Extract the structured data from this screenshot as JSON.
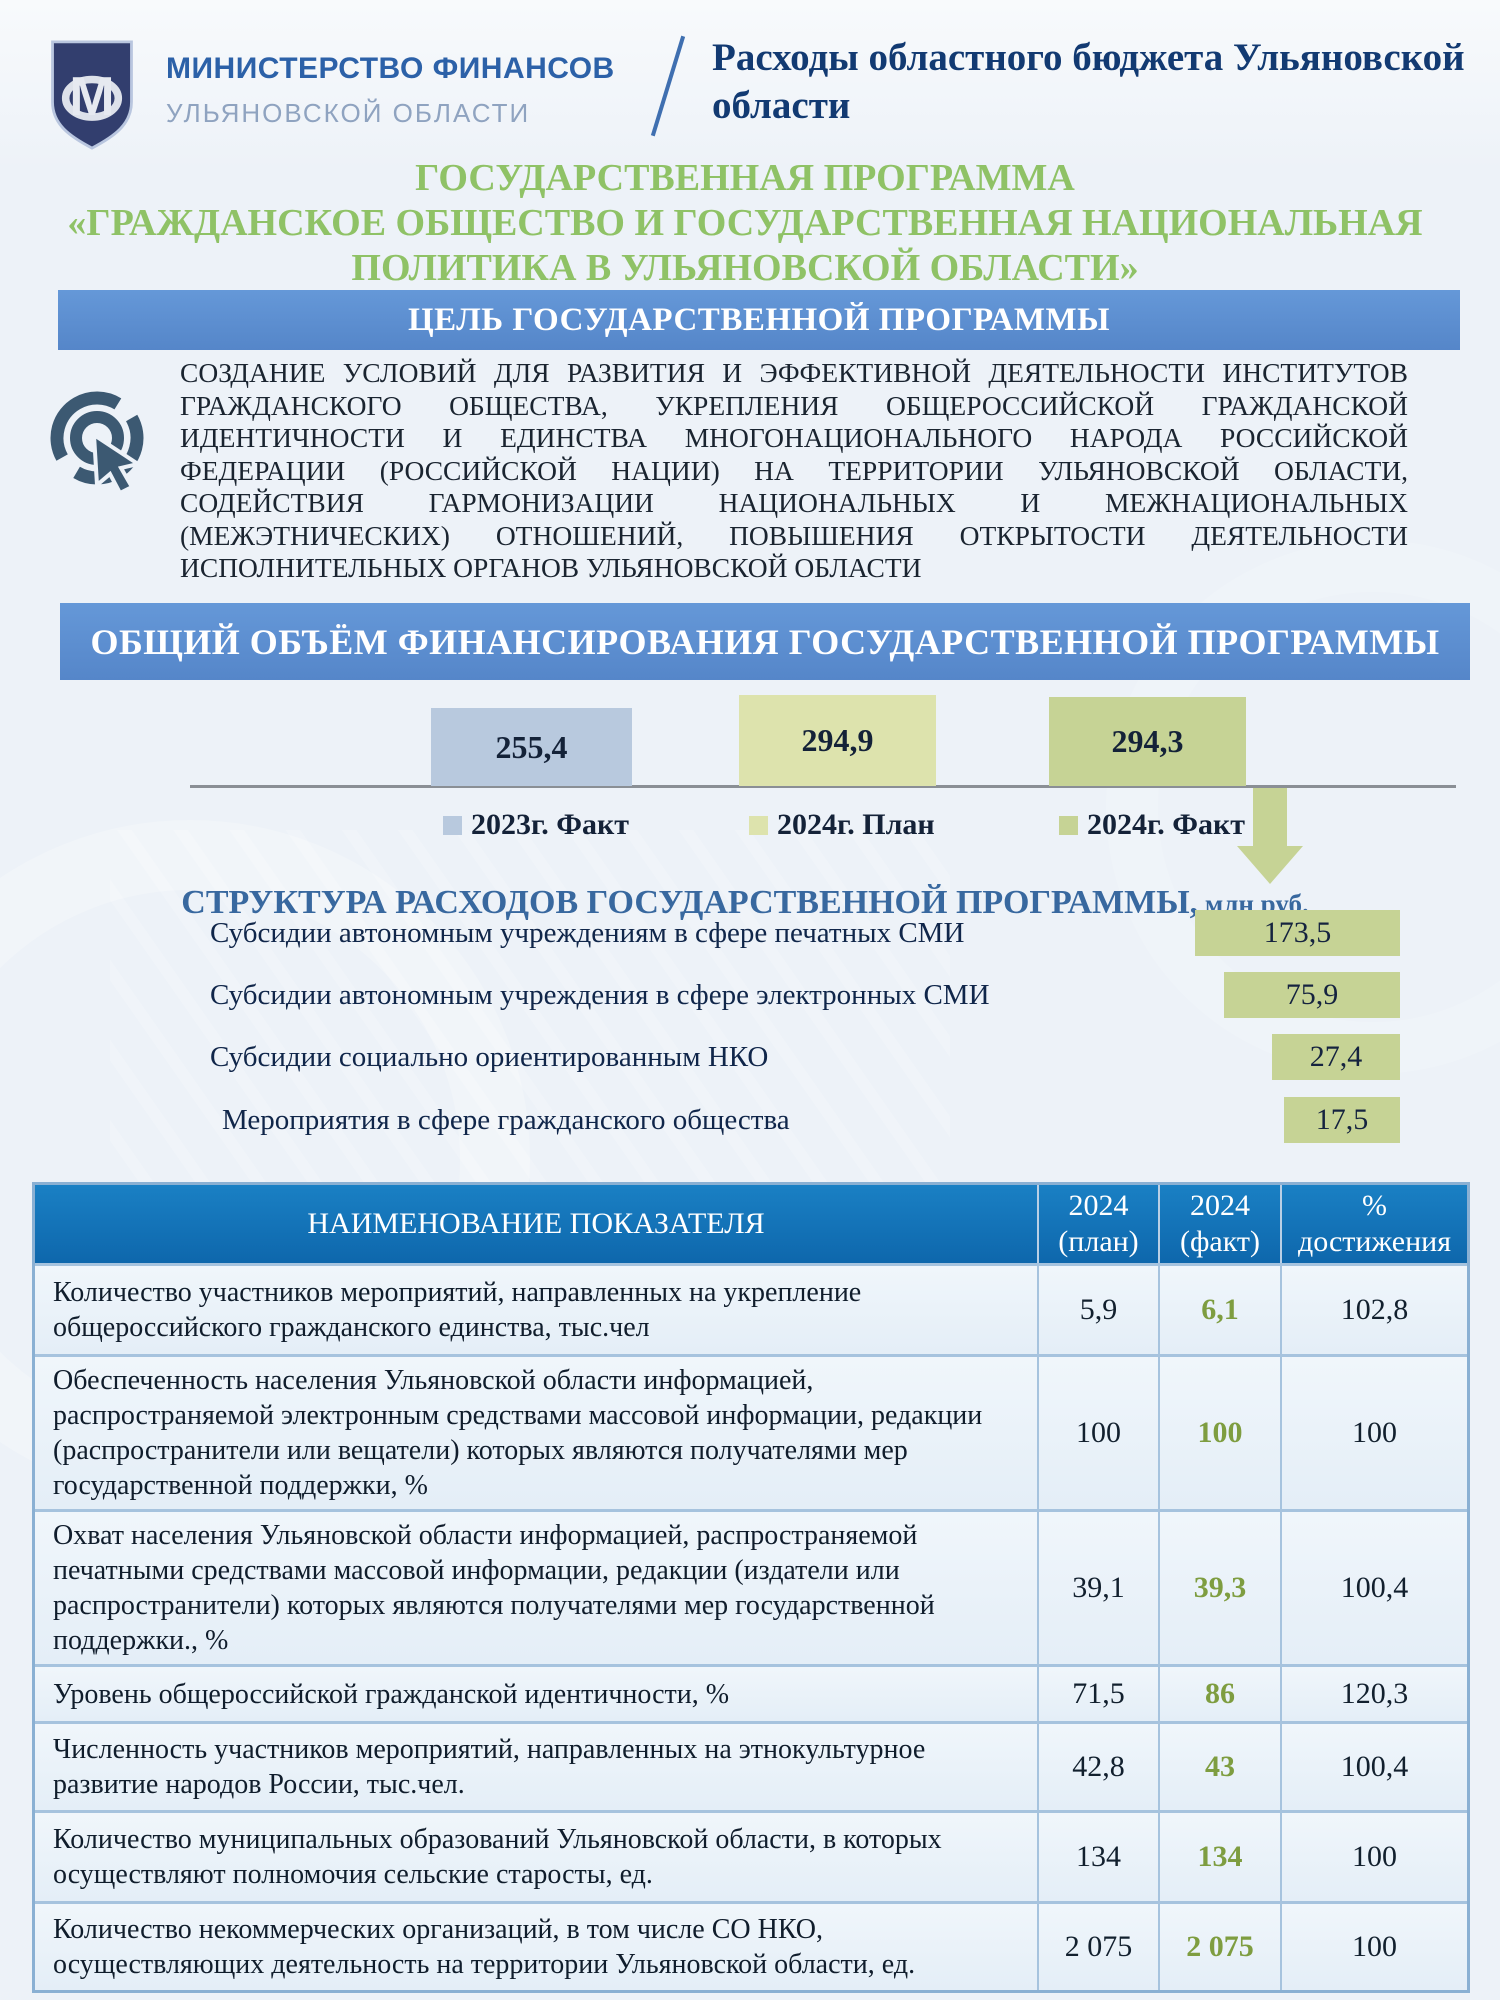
{
  "colors": {
    "banner_blue": "#5c90d1",
    "table_header_blue": "#1375bc",
    "bar_2023_fact": "#b8c9de",
    "bar_2024_plan": "#dde3ad",
    "bar_2024_fact": "#c6d395",
    "fact_green_text": "#7e9d40",
    "title_navy": "#123a72",
    "structure_title_blue": "#38689f",
    "program_title_green": "#8fc266"
  },
  "header": {
    "ministry_line1": "МИНИСТЕРСТВО ФИНАНСОВ",
    "ministry_line2": "УЛЬЯНОВСКОЙ ОБЛАСТИ",
    "logo_monogram": "М",
    "page_title": "Расходы областного бюджета Ульяновской области"
  },
  "program_title": {
    "line1": "ГОСУДАРСТВЕННАЯ ПРОГРАММА",
    "line2": "«ГРАЖДАНСКОЕ ОБЩЕСТВО И ГОСУДАРСТВЕННАЯ НАЦИОНАЛЬНАЯ",
    "line3": "ПОЛИТИКА В УЛЬЯНОВСКОЙ ОБЛАСТИ»"
  },
  "goal": {
    "banner": "ЦЕЛЬ ГОСУДАРСТВЕННОЙ ПРОГРАММЫ",
    "text": "СОЗДАНИЕ УСЛОВИЙ ДЛЯ РАЗВИТИЯ И ЭФФЕКТИВНОЙ ДЕЯТЕЛЬНОСТИ ИНСТИТУТОВ ГРАЖДАНСКОГО ОБЩЕСТВА, УКРЕПЛЕНИЯ ОБЩЕРОССИЙСКОЙ ГРАЖДАНСКОЙ ИДЕНТИЧНОСТИ И ЕДИНСТВА МНОГОНАЦИОНАЛЬНОГО НАРОДА РОССИЙСКОЙ ФЕДЕРАЦИИ (РОССИЙСКОЙ НАЦИИ) НА ТЕРРИТОРИИ УЛЬЯНОВСКОЙ ОБЛАСТИ, СОДЕЙСТВИЯ ГАРМОНИЗАЦИИ НАЦИОНАЛЬНЫХ И МЕЖНАЦИОНАЛЬНЫХ (МЕЖЭТНИЧЕСКИХ) ОТНОШЕНИЙ, ПОВЫШЕНИЯ ОТКРЫТОСТИ ДЕЯТЕЛЬНОСТИ ИСПОЛНИТЕЛЬНЫХ ОРГАНОВ УЛЬЯНОВСКОЙ ОБЛАСТИ"
  },
  "funding_banner": "ОБЩИЙ ОБЪЁМ ФИНАНСИРОВАНИЯ ГОСУДАРСТВЕННОЙ ПРОГРАММЫ",
  "structure_title": {
    "main": "СТРУКТУРА РАСХОДОВ ГОСУДАРСТВЕННОЙ ПРОГРАММЫ,",
    "units": " млн руб."
  },
  "chart_data": [
    {
      "type": "bar",
      "title": "ОБЩИЙ ОБЪЁМ ФИНАНСИРОВАНИЯ ГОСУДАРСТВЕННОЙ ПРОГРАММЫ",
      "unit": "млн руб.",
      "categories": [
        "2023г. Факт",
        "2024г. План",
        "2024г. Факт"
      ],
      "values": [
        255.4,
        294.9,
        294.3
      ],
      "value_labels": [
        "255,4",
        "294,9",
        "294,3"
      ],
      "colors": [
        "#b8c9de",
        "#dde3ad",
        "#c6d395"
      ],
      "legend_position": "bottom",
      "gridlines": false
    },
    {
      "type": "bar",
      "orientation": "horizontal",
      "title": "СТРУКТУРА РАСХОДОВ ГОСУДАРСТВЕННОЙ ПРОГРАММЫ, млн руб.",
      "unit": "млн руб.",
      "categories": [
        "Субсидии автономным учреждениям  в сфере печатных СМИ",
        "Субсидии автономным учреждения в сфере электронных СМИ",
        "Субсидии социально ориентированным НКО",
        "Мероприятия в сфере гражданского общества"
      ],
      "values": [
        173.5,
        75.9,
        27.4,
        17.5
      ],
      "value_labels": [
        "173,5",
        "75,9",
        "27,4",
        "17,5"
      ],
      "bar_color": "#c6d395"
    }
  ],
  "table": {
    "headers": [
      "НАИМЕНОВАНИЕ ПОКАЗАТЕЛЯ",
      "2024\n(план)",
      "2024\n(факт)",
      "%\nдостижения"
    ],
    "rows": [
      {
        "name": "Количество участников мероприятий, направленных на укрепление общероссийского гражданского единства, тыс.чел",
        "plan": "5,9",
        "fact": "6,1",
        "pct": "102,8"
      },
      {
        "name": "Обеспеченность населения Ульяновской области информацией, распространяемой электронным средствами массовой информации, редакции (распространители или вещатели) которых являются получателями мер государственной поддержки, %",
        "plan": "100",
        "fact": "100",
        "pct": "100"
      },
      {
        "name": "Охват населения Ульяновской области информацией, распространяемой печатными средствами массовой информации, редакции (издатели или распространители) которых являются получателями мер государственной поддержки., %",
        "plan": "39,1",
        "fact": "39,3",
        "pct": "100,4"
      },
      {
        "name": "Уровень общероссийской гражданской идентичности, %",
        "plan": "71,5",
        "fact": "86",
        "pct": "120,3"
      },
      {
        "name": "Численность участников мероприятий, направленных на этнокультурное развитие народов России, тыс.чел.",
        "plan": "42,8",
        "fact": "43",
        "pct": "100,4"
      },
      {
        "name": "Количество муниципальных образований Ульяновской области, в которых осуществляют полномочия сельские старосты, ед.",
        "plan": "134",
        "fact": "134",
        "pct": "100"
      },
      {
        "name": "Количество некоммерческих организаций, в том числе СО НКО, осуществляющих деятельность на территории Ульяновской области, ед.",
        "plan": "2 075",
        "fact": "2 075",
        "pct": "100"
      }
    ]
  }
}
